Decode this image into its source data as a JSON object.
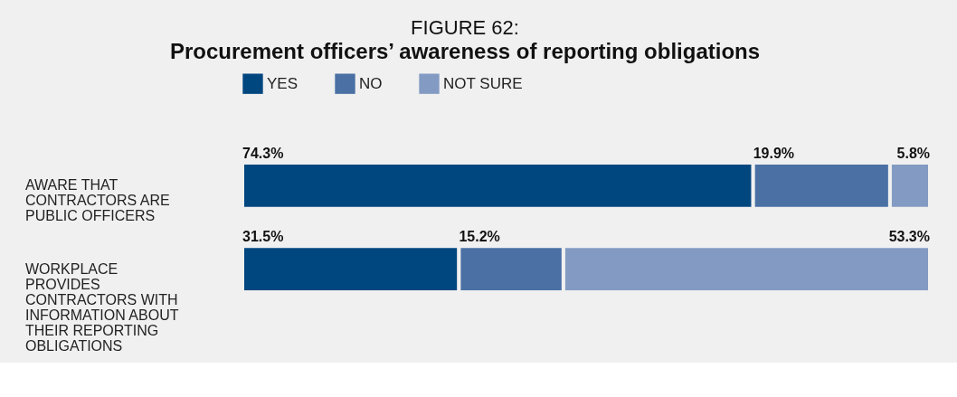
{
  "chart_data": {
    "type": "bar",
    "orientation": "horizontal",
    "stacked": true,
    "legend": "top",
    "grid": false,
    "title": "FIGURE 62:",
    "subtitle": "Procurement officers’ awareness of reporting obligations",
    "categories": [
      "AWARE THAT CONTRACTORS ARE PUBLIC OFFICERS",
      "WORKPLACE PROVIDES CONTRACTORS WITH INFORMATION ABOUT THEIR REPORTING OBLIGATIONS"
    ],
    "series": [
      {
        "name": "YES",
        "color": "#00467f",
        "values": [
          74.3,
          31.5
        ],
        "value_labels": [
          "74.3%",
          "31.5%"
        ]
      },
      {
        "name": "NO",
        "color": "#4a70a4",
        "values": [
          19.9,
          15.2
        ],
        "value_labels": [
          "19.9%",
          "15.2%"
        ]
      },
      {
        "name": "NOT SURE",
        "color": "#839bc3",
        "values": [
          5.8,
          53.3
        ],
        "value_labels": [
          "5.8%",
          "53.3%"
        ]
      }
    ]
  }
}
